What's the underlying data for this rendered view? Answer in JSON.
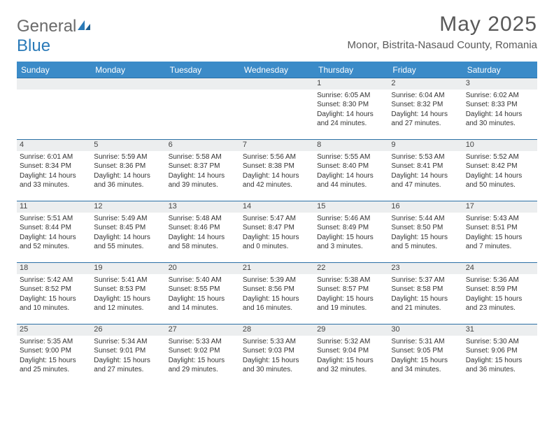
{
  "logo": {
    "text1": "General",
    "text2": "Blue"
  },
  "title": "May 2025",
  "location": "Monor, Bistrita-Nasaud County, Romania",
  "colors": {
    "header_bg": "#3b8bc8",
    "header_text": "#ffffff",
    "daynum_bg": "#eceeef",
    "border": "#2a6fa5",
    "title_color": "#595959",
    "logo_gray": "#6a6a6a",
    "logo_blue": "#2a7ab8"
  },
  "day_headers": [
    "Sunday",
    "Monday",
    "Tuesday",
    "Wednesday",
    "Thursday",
    "Friday",
    "Saturday"
  ],
  "weeks": [
    [
      {
        "n": "",
        "sr": "",
        "ss": "",
        "dl": ""
      },
      {
        "n": "",
        "sr": "",
        "ss": "",
        "dl": ""
      },
      {
        "n": "",
        "sr": "",
        "ss": "",
        "dl": ""
      },
      {
        "n": "",
        "sr": "",
        "ss": "",
        "dl": ""
      },
      {
        "n": "1",
        "sr": "Sunrise: 6:05 AM",
        "ss": "Sunset: 8:30 PM",
        "dl": "Daylight: 14 hours and 24 minutes."
      },
      {
        "n": "2",
        "sr": "Sunrise: 6:04 AM",
        "ss": "Sunset: 8:32 PM",
        "dl": "Daylight: 14 hours and 27 minutes."
      },
      {
        "n": "3",
        "sr": "Sunrise: 6:02 AM",
        "ss": "Sunset: 8:33 PM",
        "dl": "Daylight: 14 hours and 30 minutes."
      }
    ],
    [
      {
        "n": "4",
        "sr": "Sunrise: 6:01 AM",
        "ss": "Sunset: 8:34 PM",
        "dl": "Daylight: 14 hours and 33 minutes."
      },
      {
        "n": "5",
        "sr": "Sunrise: 5:59 AM",
        "ss": "Sunset: 8:36 PM",
        "dl": "Daylight: 14 hours and 36 minutes."
      },
      {
        "n": "6",
        "sr": "Sunrise: 5:58 AM",
        "ss": "Sunset: 8:37 PM",
        "dl": "Daylight: 14 hours and 39 minutes."
      },
      {
        "n": "7",
        "sr": "Sunrise: 5:56 AM",
        "ss": "Sunset: 8:38 PM",
        "dl": "Daylight: 14 hours and 42 minutes."
      },
      {
        "n": "8",
        "sr": "Sunrise: 5:55 AM",
        "ss": "Sunset: 8:40 PM",
        "dl": "Daylight: 14 hours and 44 minutes."
      },
      {
        "n": "9",
        "sr": "Sunrise: 5:53 AM",
        "ss": "Sunset: 8:41 PM",
        "dl": "Daylight: 14 hours and 47 minutes."
      },
      {
        "n": "10",
        "sr": "Sunrise: 5:52 AM",
        "ss": "Sunset: 8:42 PM",
        "dl": "Daylight: 14 hours and 50 minutes."
      }
    ],
    [
      {
        "n": "11",
        "sr": "Sunrise: 5:51 AM",
        "ss": "Sunset: 8:44 PM",
        "dl": "Daylight: 14 hours and 52 minutes."
      },
      {
        "n": "12",
        "sr": "Sunrise: 5:49 AM",
        "ss": "Sunset: 8:45 PM",
        "dl": "Daylight: 14 hours and 55 minutes."
      },
      {
        "n": "13",
        "sr": "Sunrise: 5:48 AM",
        "ss": "Sunset: 8:46 PM",
        "dl": "Daylight: 14 hours and 58 minutes."
      },
      {
        "n": "14",
        "sr": "Sunrise: 5:47 AM",
        "ss": "Sunset: 8:47 PM",
        "dl": "Daylight: 15 hours and 0 minutes."
      },
      {
        "n": "15",
        "sr": "Sunrise: 5:46 AM",
        "ss": "Sunset: 8:49 PM",
        "dl": "Daylight: 15 hours and 3 minutes."
      },
      {
        "n": "16",
        "sr": "Sunrise: 5:44 AM",
        "ss": "Sunset: 8:50 PM",
        "dl": "Daylight: 15 hours and 5 minutes."
      },
      {
        "n": "17",
        "sr": "Sunrise: 5:43 AM",
        "ss": "Sunset: 8:51 PM",
        "dl": "Daylight: 15 hours and 7 minutes."
      }
    ],
    [
      {
        "n": "18",
        "sr": "Sunrise: 5:42 AM",
        "ss": "Sunset: 8:52 PM",
        "dl": "Daylight: 15 hours and 10 minutes."
      },
      {
        "n": "19",
        "sr": "Sunrise: 5:41 AM",
        "ss": "Sunset: 8:53 PM",
        "dl": "Daylight: 15 hours and 12 minutes."
      },
      {
        "n": "20",
        "sr": "Sunrise: 5:40 AM",
        "ss": "Sunset: 8:55 PM",
        "dl": "Daylight: 15 hours and 14 minutes."
      },
      {
        "n": "21",
        "sr": "Sunrise: 5:39 AM",
        "ss": "Sunset: 8:56 PM",
        "dl": "Daylight: 15 hours and 16 minutes."
      },
      {
        "n": "22",
        "sr": "Sunrise: 5:38 AM",
        "ss": "Sunset: 8:57 PM",
        "dl": "Daylight: 15 hours and 19 minutes."
      },
      {
        "n": "23",
        "sr": "Sunrise: 5:37 AM",
        "ss": "Sunset: 8:58 PM",
        "dl": "Daylight: 15 hours and 21 minutes."
      },
      {
        "n": "24",
        "sr": "Sunrise: 5:36 AM",
        "ss": "Sunset: 8:59 PM",
        "dl": "Daylight: 15 hours and 23 minutes."
      }
    ],
    [
      {
        "n": "25",
        "sr": "Sunrise: 5:35 AM",
        "ss": "Sunset: 9:00 PM",
        "dl": "Daylight: 15 hours and 25 minutes."
      },
      {
        "n": "26",
        "sr": "Sunrise: 5:34 AM",
        "ss": "Sunset: 9:01 PM",
        "dl": "Daylight: 15 hours and 27 minutes."
      },
      {
        "n": "27",
        "sr": "Sunrise: 5:33 AM",
        "ss": "Sunset: 9:02 PM",
        "dl": "Daylight: 15 hours and 29 minutes."
      },
      {
        "n": "28",
        "sr": "Sunrise: 5:33 AM",
        "ss": "Sunset: 9:03 PM",
        "dl": "Daylight: 15 hours and 30 minutes."
      },
      {
        "n": "29",
        "sr": "Sunrise: 5:32 AM",
        "ss": "Sunset: 9:04 PM",
        "dl": "Daylight: 15 hours and 32 minutes."
      },
      {
        "n": "30",
        "sr": "Sunrise: 5:31 AM",
        "ss": "Sunset: 9:05 PM",
        "dl": "Daylight: 15 hours and 34 minutes."
      },
      {
        "n": "31",
        "sr": "Sunrise: 5:30 AM",
        "ss": "Sunset: 9:06 PM",
        "dl": "Daylight: 15 hours and 36 minutes."
      }
    ]
  ]
}
